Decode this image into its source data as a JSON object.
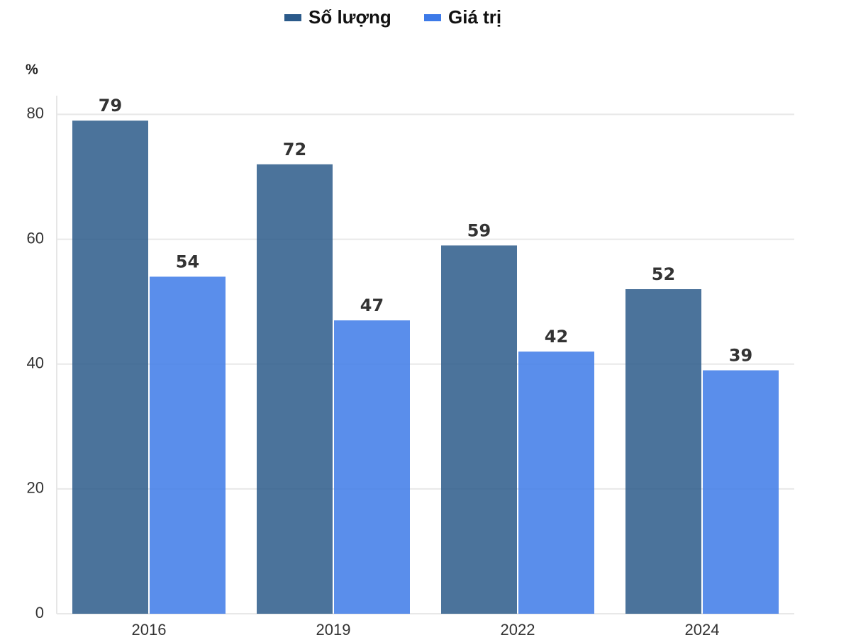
{
  "chart_data": {
    "type": "bar",
    "y_label": "%",
    "categories": [
      "2016",
      "2019",
      "2022",
      "2024"
    ],
    "series": [
      {
        "name": "Số lượng",
        "color": "#2b5a8a",
        "values": [
          79,
          72,
          59,
          52
        ]
      },
      {
        "name": "Giá trị",
        "color": "#3d7ae8",
        "values": [
          54,
          47,
          42,
          39
        ]
      }
    ],
    "ylim": [
      0,
      83
    ],
    "yticks": [
      0,
      20,
      40,
      60,
      80
    ],
    "grid": true,
    "legend": "top"
  }
}
